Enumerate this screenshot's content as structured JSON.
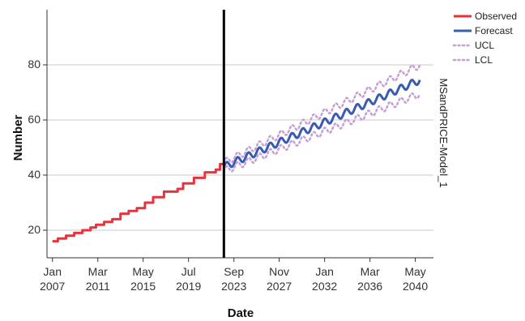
{
  "chart_data": {
    "type": "line",
    "xlabel": "Date",
    "ylabel": "Number",
    "panel_label": "MSandPRICE-Model_1",
    "ylim": [
      10,
      100
    ],
    "xlim": [
      2006.5,
      2042.0
    ],
    "yticks": [
      20,
      40,
      60,
      80
    ],
    "xticks": [
      {
        "x": 2007.0,
        "label": [
          "Jan",
          "2007"
        ]
      },
      {
        "x": 2011.17,
        "label": [
          "Mar",
          "2011"
        ]
      },
      {
        "x": 2015.33,
        "label": [
          "May",
          "2015"
        ]
      },
      {
        "x": 2019.5,
        "label": [
          "Jul",
          "2019"
        ]
      },
      {
        "x": 2023.67,
        "label": [
          "Sep",
          "2023"
        ]
      },
      {
        "x": 2027.83,
        "label": [
          "Nov",
          "2027"
        ]
      },
      {
        "x": 2032.0,
        "label": [
          "Jan",
          "2032"
        ]
      },
      {
        "x": 2036.17,
        "label": [
          "Mar",
          "2036"
        ]
      },
      {
        "x": 2040.33,
        "label": [
          "May",
          "2040"
        ]
      }
    ],
    "forecast_start": 2022.75,
    "grid": {
      "horizontal": true,
      "vertical": false
    },
    "legend_position": "top-right",
    "series": [
      {
        "name": "Observed",
        "color": "#e8333d",
        "style": "solid",
        "points": [
          [
            2007.0,
            16
          ],
          [
            2007.5,
            16
          ],
          [
            2007.5,
            17
          ],
          [
            2008.25,
            17
          ],
          [
            2008.25,
            18
          ],
          [
            2009.0,
            18
          ],
          [
            2009.0,
            19
          ],
          [
            2009.75,
            19
          ],
          [
            2009.75,
            20
          ],
          [
            2010.5,
            20
          ],
          [
            2010.5,
            21
          ],
          [
            2011.0,
            21
          ],
          [
            2011.0,
            22
          ],
          [
            2011.75,
            22
          ],
          [
            2011.75,
            23
          ],
          [
            2012.5,
            23
          ],
          [
            2012.5,
            24
          ],
          [
            2013.25,
            24
          ],
          [
            2013.25,
            26
          ],
          [
            2014.0,
            26
          ],
          [
            2014.0,
            27
          ],
          [
            2014.75,
            27
          ],
          [
            2014.75,
            28
          ],
          [
            2015.5,
            28
          ],
          [
            2015.5,
            30
          ],
          [
            2016.25,
            30
          ],
          [
            2016.25,
            32
          ],
          [
            2017.25,
            32
          ],
          [
            2017.25,
            34
          ],
          [
            2018.5,
            34
          ],
          [
            2018.5,
            35
          ],
          [
            2019.0,
            35
          ],
          [
            2019.0,
            37
          ],
          [
            2020.0,
            37
          ],
          [
            2020.0,
            39
          ],
          [
            2021.0,
            39
          ],
          [
            2021.0,
            41
          ],
          [
            2022.0,
            41
          ],
          [
            2022.0,
            42
          ],
          [
            2022.4,
            42
          ],
          [
            2022.4,
            44
          ],
          [
            2022.75,
            44
          ]
        ]
      },
      {
        "name": "Forecast",
        "color": "#3a5bb2",
        "style": "solid",
        "start": 2022.75,
        "end": 2040.75,
        "start_value": 43,
        "end_value": 74.5,
        "seasonal_amplitude": 1.3
      },
      {
        "name": "UCL",
        "color": "#c59fd6",
        "style": "dotted",
        "start": 2022.75,
        "end": 2040.75,
        "start_value": 44.5,
        "end_value": 80,
        "seasonal_amplitude": 1.3
      },
      {
        "name": "LCL",
        "color": "#c59fd6",
        "style": "dotted",
        "start": 2022.75,
        "end": 2040.75,
        "start_value": 41.5,
        "end_value": 69.5,
        "seasonal_amplitude": 1.3
      }
    ]
  }
}
